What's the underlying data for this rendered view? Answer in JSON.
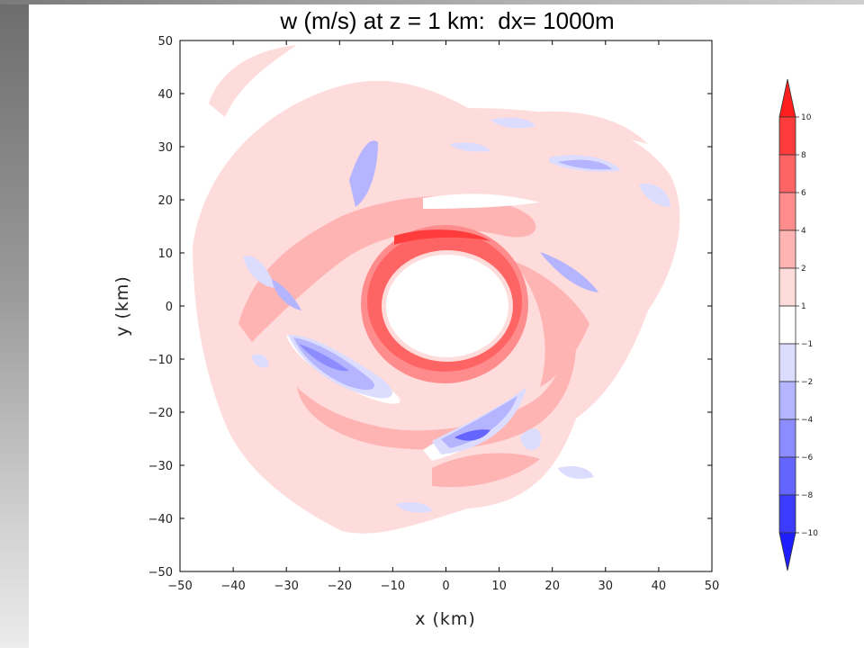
{
  "chart_data": {
    "type": "heatmap",
    "title": "w (m/s) at z = 1 km:  dx= 1000m",
    "xlabel": "x (km)",
    "ylabel": "y (km)",
    "xlim": [
      -50,
      50
    ],
    "ylim": [
      -50,
      50
    ],
    "x_ticks": [
      "−50",
      "−40",
      "−30",
      "−20",
      "−10",
      "0",
      "10",
      "20",
      "30",
      "40",
      "50"
    ],
    "y_ticks": [
      "50",
      "40",
      "30",
      "20",
      "10",
      "0",
      "−10",
      "−20",
      "−30",
      "−40",
      "−50"
    ],
    "grid": false,
    "eyewall": {
      "center": [
        0,
        2
      ],
      "radius_km": 10.5,
      "peak_w_ms": 8
    },
    "colorbar": {
      "levels": [
        10,
        8,
        6,
        4,
        2,
        1,
        -1,
        -2,
        -4,
        -6,
        -8,
        -10
      ],
      "labels": [
        "10",
        "8",
        "6",
        "4",
        "2",
        "1",
        "−1",
        "−2",
        "−4",
        "−6",
        "−8",
        "−10"
      ],
      "colors": [
        "#ff1e1e",
        "#ff3c3c",
        "#ff6464",
        "#ff8c8c",
        "#ffb4b4",
        "#ffdcdc",
        "#ffffff",
        "#dcdcff",
        "#b4b4ff",
        "#8c8cff",
        "#6464ff",
        "#3c3cff",
        "#1e1eff"
      ]
    }
  }
}
